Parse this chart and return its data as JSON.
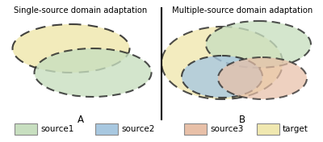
{
  "bg_color": "#ffffff",
  "title_left": "Single-source domain adaptation",
  "title_right": "Multiple-source domain adaptation",
  "label_A": "A",
  "label_B": "B",
  "colors": {
    "source1": "#c8dfc0",
    "source2": "#a8c8e0",
    "source3": "#e8c0a8",
    "target": "#f0e8b0"
  },
  "legend_labels": [
    "source1",
    "source2",
    "source3",
    "target"
  ],
  "font_size_title": 7.2,
  "font_size_label": 8.5,
  "font_size_legend": 7.5
}
